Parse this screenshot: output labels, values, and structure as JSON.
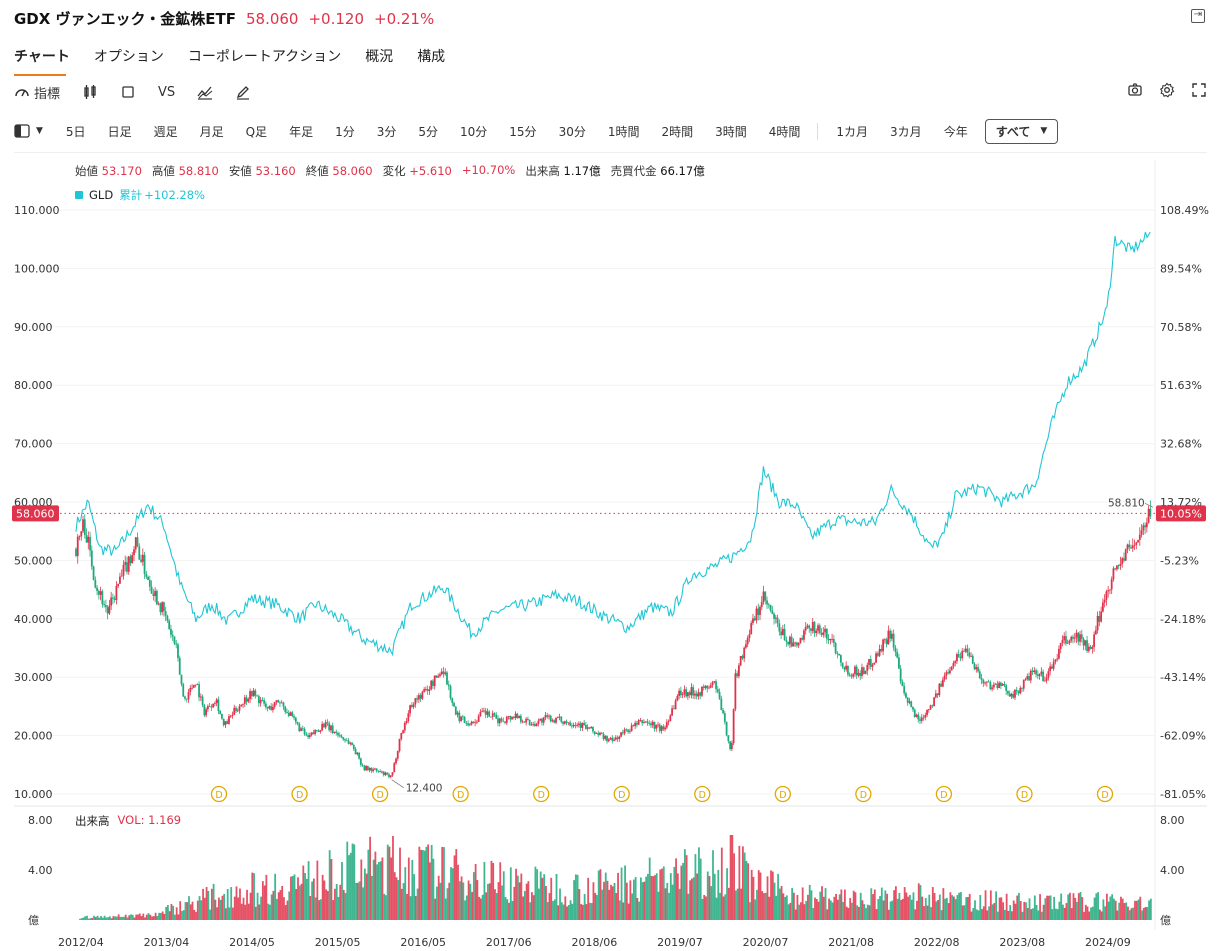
{
  "header": {
    "name": "GDX ヴァンエック・金鉱株ETF",
    "price": "58.060",
    "change": "+0.120",
    "change_pct": "+0.21%"
  },
  "tabs": [
    "チャート",
    "オプション",
    "コーポレートアクション",
    "概況",
    "構成"
  ],
  "toolbar": {
    "indicator_label": "指標",
    "vs_label": "VS",
    "icons": [
      "indicator-icon",
      "candlestick-icon",
      "square-icon",
      "compare-icon",
      "draw-icon",
      "camera-icon",
      "settings-icon",
      "fullscreen-icon"
    ]
  },
  "periods": [
    "5日",
    "日足",
    "週足",
    "月足",
    "Q足",
    "年足",
    "1分",
    "3分",
    "5分",
    "10分",
    "15分",
    "30分",
    "1時間",
    "2時間",
    "3時間",
    "4時間",
    "1カ月",
    "3カ月",
    "今年"
  ],
  "all_label": "すべて",
  "ohlc": {
    "open_label": "始値",
    "open": "53.170",
    "high_label": "高値",
    "high": "58.810",
    "low_label": "安値",
    "low": "53.160",
    "close_label": "終値",
    "close": "58.060",
    "change_label": "変化",
    "change": "+5.610",
    "change_pct": "+10.70%",
    "volume_label": "出来高",
    "volume": "1.17億",
    "turnover_label": "売買代金",
    "turnover": "66.17億"
  },
  "compare": {
    "symbol": "GLD",
    "cum_label": "累計",
    "cum_value": "+102.28%"
  },
  "volume_panel": {
    "title": "出来高",
    "vol_label": "VOL: 1.169"
  },
  "colors": {
    "up": "#e0324a",
    "down": "#1ea97c",
    "gld": "#21c6d4",
    "accent": "#f07a1a",
    "dividend": "#e0a800"
  },
  "chart_data": {
    "type": "line",
    "title": "GDX ヴァンエック・金鉱株ETF",
    "x_tick_labels": [
      "2012/04",
      "2013/04",
      "2014/05",
      "2015/05",
      "2016/05",
      "2017/06",
      "2018/06",
      "2019/07",
      "2020/07",
      "2021/08",
      "2022/08",
      "2023/08",
      "2024/09"
    ],
    "y_left_ticks": [
      "110.000",
      "100.000",
      "90.000",
      "80.000",
      "70.000",
      "60.000",
      "50.000",
      "40.000",
      "30.000",
      "20.000",
      "10.000"
    ],
    "y_right_ticks": [
      "108.49%",
      "89.54%",
      "70.58%",
      "51.63%",
      "32.68%",
      "13.72%",
      "-5.23%",
      "-24.18%",
      "-43.14%",
      "-62.09%",
      "-81.05%"
    ],
    "ylim": [
      10,
      110
    ],
    "current_price_label": "58.060",
    "current_pct_label": "10.05%",
    "high_marker": "58.810",
    "low_marker": "12.400",
    "dividend_marker": "D",
    "dividend_dates": [
      2013.55,
      2014.55,
      2015.55,
      2016.55,
      2017.55,
      2018.55,
      2019.55,
      2020.55,
      2021.55,
      2022.55,
      2023.55,
      2024.55
    ],
    "gdx_series": {
      "name": "GDX",
      "x": [
        2012.0,
        2012.1,
        2012.25,
        2012.4,
        2012.55,
        2012.75,
        2012.9,
        2013.1,
        2013.25,
        2013.35,
        2013.5,
        2013.6,
        2013.75,
        2013.85,
        2014.0,
        2014.2,
        2014.4,
        2014.55,
        2014.7,
        2014.9,
        2015.1,
        2015.25,
        2015.45,
        2015.6,
        2015.75,
        2015.95,
        2016.05,
        2016.2,
        2016.4,
        2016.6,
        2016.75,
        2016.95,
        2017.1,
        2017.3,
        2017.5,
        2017.7,
        2017.9,
        2018.1,
        2018.3,
        2018.5,
        2018.7,
        2018.9,
        2019.1,
        2019.35,
        2019.55,
        2019.8,
        2020.0,
        2020.2,
        2020.25,
        2020.4,
        2020.6,
        2020.8,
        2021.0,
        2021.2,
        2021.45,
        2021.65,
        2021.85,
        2022.0,
        2022.2,
        2022.35,
        2022.55,
        2022.75,
        2022.95,
        2023.15,
        2023.35,
        2023.55,
        2023.75,
        2023.95,
        2024.15,
        2024.35,
        2024.55,
        2024.7,
        2024.8,
        2024.95,
        2025.1,
        2025.3,
        2025.45
      ],
      "values": [
        52.0,
        56.5,
        46.0,
        41.0,
        46.5,
        53.0,
        47.0,
        41.0,
        35.0,
        26.0,
        29.5,
        24.0,
        26.5,
        21.5,
        24.5,
        27.5,
        24.5,
        26.0,
        23.0,
        19.5,
        22.0,
        20.5,
        18.5,
        14.5,
        14.0,
        12.8,
        19.5,
        25.5,
        28.0,
        31.5,
        23.5,
        22.0,
        24.0,
        22.5,
        23.5,
        22.0,
        23.0,
        22.5,
        22.0,
        20.5,
        19.0,
        21.0,
        22.5,
        21.0,
        27.5,
        27.5,
        29.0,
        17.0,
        30.0,
        37.0,
        43.5,
        38.0,
        35.0,
        39.0,
        36.5,
        31.0,
        31.0,
        33.5,
        38.0,
        27.0,
        22.5,
        26.5,
        32.5,
        35.0,
        29.0,
        28.5,
        27.0,
        30.5,
        30.0,
        36.0,
        37.0,
        34.0,
        40.5,
        47.0,
        50.5,
        54.0,
        58.06
      ]
    },
    "gld_series": {
      "name": "GLD",
      "x": [
        2012.0,
        2012.15,
        2012.3,
        2012.5,
        2012.7,
        2012.9,
        2013.1,
        2013.3,
        2013.5,
        2013.7,
        2013.9,
        2014.2,
        2014.5,
        2014.8,
        2015.0,
        2015.3,
        2015.6,
        2015.95,
        2016.2,
        2016.6,
        2016.95,
        2017.3,
        2017.7,
        2018.0,
        2018.3,
        2018.6,
        2018.9,
        2019.2,
        2019.45,
        2019.7,
        2020.0,
        2020.25,
        2020.45,
        2020.6,
        2020.8,
        2021.0,
        2021.2,
        2021.5,
        2021.8,
        2022.0,
        2022.2,
        2022.45,
        2022.7,
        2022.85,
        2023.0,
        2023.3,
        2023.6,
        2023.8,
        2024.0,
        2024.2,
        2024.4,
        2024.6,
        2024.75,
        2024.9,
        2025.0,
        2025.2,
        2025.45
      ],
      "values": [
        56.0,
        60.0,
        52.0,
        51.5,
        55.5,
        59.5,
        56.0,
        46.0,
        40.0,
        42.5,
        39.5,
        43.5,
        42.5,
        40.0,
        42.5,
        40.0,
        36.5,
        34.5,
        42.5,
        45.5,
        37.5,
        41.5,
        42.5,
        44.0,
        43.0,
        40.5,
        38.5,
        42.0,
        41.0,
        47.5,
        49.0,
        51.0,
        54.0,
        65.5,
        60.0,
        59.5,
        54.0,
        57.0,
        56.5,
        56.5,
        62.0,
        58.0,
        52.0,
        54.0,
        61.0,
        62.5,
        60.0,
        61.5,
        63.0,
        73.0,
        80.5,
        83.0,
        88.0,
        93.0,
        105.0,
        103.0,
        106.0
      ]
    },
    "volume_series": {
      "name": "出来高",
      "unit": "億",
      "y_ticks": [
        "8.00",
        "4.00",
        "億"
      ],
      "x": [
        2012.0,
        2012.5,
        2013.0,
        2013.5,
        2014.0,
        2014.5,
        2015.0,
        2015.5,
        2016.0,
        2016.5,
        2017.0,
        2017.5,
        2018.0,
        2018.5,
        2019.0,
        2019.5,
        2019.9,
        2020.2,
        2020.5,
        2021.0,
        2021.5,
        2022.0,
        2022.5,
        2023.0,
        2023.5,
        2024.0,
        2024.5,
        2025.0,
        2025.45
      ],
      "values": [
        0.2,
        0.3,
        0.5,
        1.6,
        2.4,
        2.8,
        3.4,
        4.4,
        4.6,
        4.1,
        3.6,
        3.1,
        2.7,
        2.7,
        3.3,
        3.7,
        4.2,
        4.9,
        3.0,
        2.1,
        1.8,
        1.7,
        2.0,
        1.6,
        1.6,
        1.4,
        1.5,
        1.6,
        1.169
      ]
    }
  }
}
